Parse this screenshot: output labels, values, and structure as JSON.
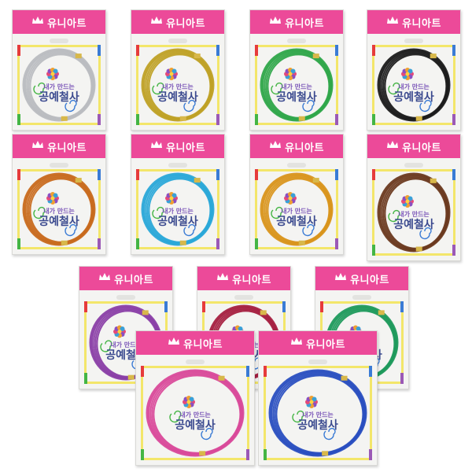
{
  "brand": "유니아트",
  "tagline": "내가 만드는",
  "product": "공예철사",
  "packages": [
    {
      "color_name": "silver",
      "wire_color": "#b9bcc0"
    },
    {
      "color_name": "gold",
      "wire_color": "#bfa126"
    },
    {
      "color_name": "green",
      "wire_color": "#2fa64a"
    },
    {
      "color_name": "black",
      "wire_color": "#1c1c1c"
    },
    {
      "color_name": "copper",
      "wire_color": "#c86a1e"
    },
    {
      "color_name": "sky-blue",
      "wire_color": "#2aa8d8"
    },
    {
      "color_name": "orange-gold",
      "wire_color": "#d9951c"
    },
    {
      "color_name": "brown",
      "wire_color": "#6b3a20"
    },
    {
      "color_name": "purple",
      "wire_color": "#8a3fa6"
    },
    {
      "color_name": "wine-red",
      "wire_color": "#a52040"
    },
    {
      "color_name": "emerald",
      "wire_color": "#1f9a5c"
    },
    {
      "color_name": "pink",
      "wire_color": "#d94a9a"
    },
    {
      "color_name": "blue",
      "wire_color": "#2a4fc0"
    }
  ]
}
